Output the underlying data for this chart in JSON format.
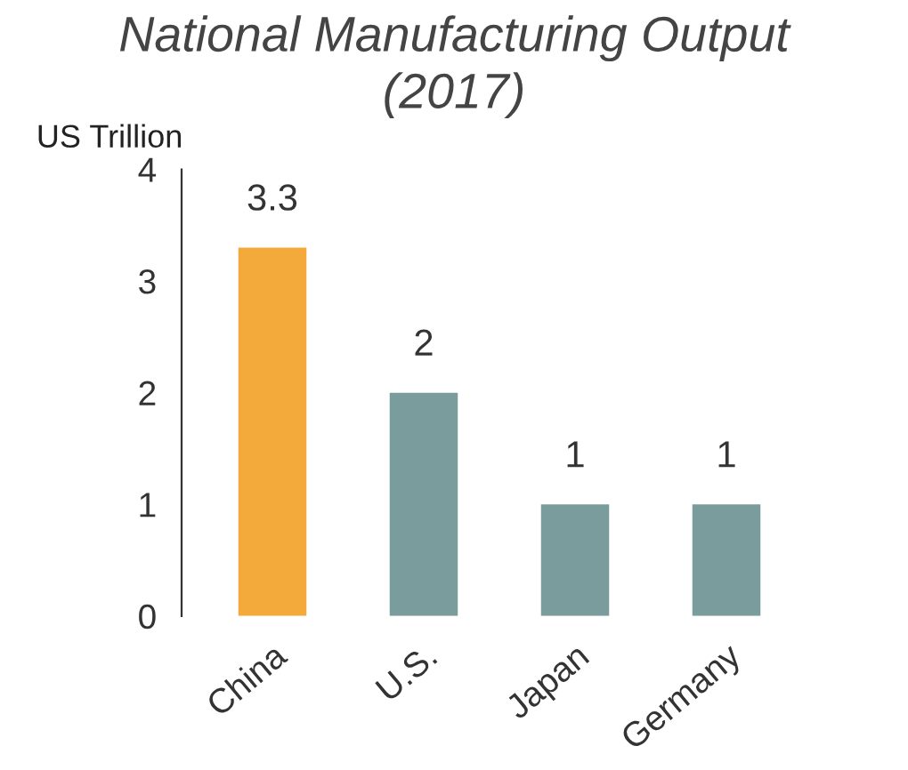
{
  "chart_data": {
    "type": "bar",
    "title": "National Manufacturing Output\n(2017)",
    "ylabel": "US Trillion",
    "categories": [
      "China",
      "U.S.",
      "Japan",
      "Germany"
    ],
    "values": [
      3.3,
      2,
      1,
      1
    ],
    "colors": [
      "#f4a93b",
      "#7b9c9c",
      "#7b9c9c",
      "#7b9c9c"
    ],
    "ylim": [
      0,
      4
    ],
    "yticks": [
      0,
      1,
      2,
      3,
      4
    ],
    "grid": false,
    "data_labels": true
  }
}
